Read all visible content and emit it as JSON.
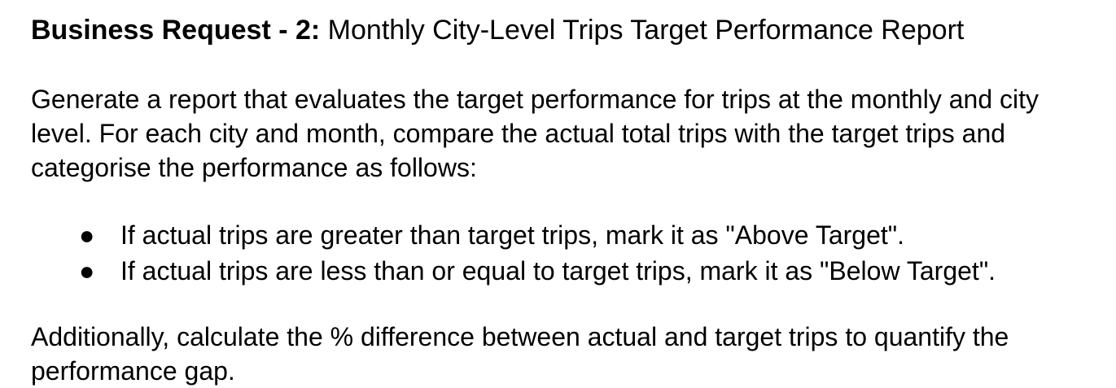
{
  "title": {
    "label": "Business Request - 2:",
    "text": "Monthly City-Level Trips Target Performance Report"
  },
  "intro": "Generate a report that evaluates the target performance for trips at the monthly and city level. For each city and month, compare the actual total trips with the target trips and categorise the performance as follows:",
  "rules": [
    {
      "bullet": "●",
      "text": "If actual trips are greater than target trips, mark it as \"Above Target\"."
    },
    {
      "bullet": "●",
      "text": "If actual trips are less than or equal to target trips, mark it as \"Below Target\"."
    }
  ],
  "outro": "Additionally, calculate the % difference between actual and target trips to quantify the performance gap."
}
